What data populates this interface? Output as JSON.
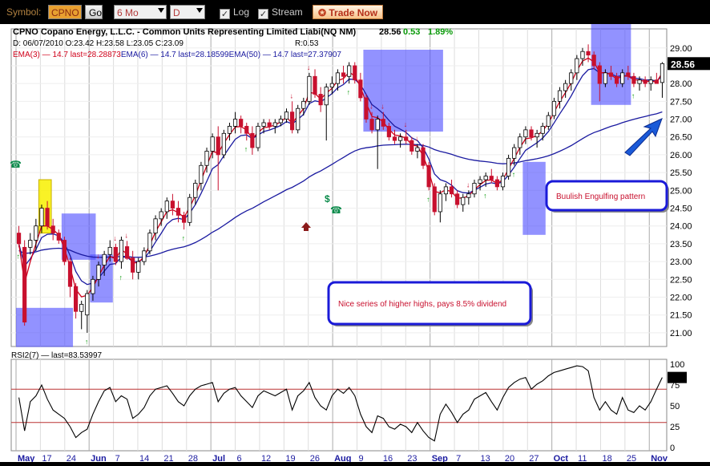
{
  "toolbar": {
    "symbol_label": "Symbol:",
    "symbol_value": "CPNO",
    "go_label": "Go",
    "period_value": "6 Mo",
    "interval_value": "D",
    "log_label": "Log",
    "stream_label": "Stream",
    "trade_label": "Trade Now"
  },
  "chart_data": [
    {
      "type": "candlestick",
      "title": "CPNO Copano Energy, L.L.C. - Common Units Representing Limited Liabi(NQ NM)",
      "last_price": "28.56",
      "change": "0.53",
      "change_pct": "1.89%",
      "ohlc_line": "D: 06/07/2010 O:23.42 H:23.58 L:23.05 C:23.09",
      "r_value": "R:0.53",
      "ema_line": [
        {
          "text": "EMA(3) — 14.7 last=28.28873",
          "color": "#d0021b"
        },
        {
          "text": "EMA(6) — 14.7 last=28.18599",
          "color": "#1a1aa0"
        },
        {
          "text": "EMA(50) — 14.7 last=27.37907",
          "color": "#1a1aa0"
        }
      ],
      "ylim": [
        20.75,
        29.4
      ],
      "yticks": [
        "29.00",
        "28.50",
        "28.00",
        "27.50",
        "27.00",
        "26.50",
        "26.00",
        "25.50",
        "25.00",
        "24.50",
        "24.00",
        "23.50",
        "23.00",
        "22.50",
        "22.00",
        "21.50",
        "21.00"
      ],
      "last_label": "28.56",
      "candles": [
        [
          23.8,
          24.0,
          23.4,
          23.5
        ],
        [
          23.4,
          23.6,
          21.2,
          21.3
        ],
        [
          23.4,
          23.8,
          23.2,
          23.6
        ],
        [
          23.6,
          24.2,
          23.3,
          24.0
        ],
        [
          24.0,
          24.6,
          23.8,
          24.5
        ],
        [
          24.5,
          24.7,
          23.9,
          24.0
        ],
        [
          24.0,
          24.2,
          23.6,
          23.8
        ],
        [
          23.8,
          23.9,
          23.5,
          23.6
        ],
        [
          23.6,
          23.7,
          22.9,
          23.0
        ],
        [
          23.0,
          23.1,
          22.0,
          22.3
        ],
        [
          22.3,
          22.4,
          21.4,
          21.6
        ],
        [
          21.6,
          21.9,
          21.1,
          21.8
        ],
        [
          21.5,
          22.2,
          21.0,
          22.1
        ],
        [
          22.1,
          22.6,
          21.9,
          22.5
        ],
        [
          22.5,
          23.0,
          22.3,
          22.9
        ],
        [
          22.9,
          23.3,
          22.6,
          23.2
        ],
        [
          23.2,
          23.6,
          23.0,
          23.4
        ],
        [
          23.4,
          23.5,
          22.9,
          23.0
        ],
        [
          23.0,
          23.7,
          22.8,
          23.6
        ],
        [
          23.42,
          23.58,
          23.05,
          23.09
        ],
        [
          23.1,
          23.3,
          22.5,
          22.7
        ],
        [
          22.7,
          23.1,
          22.5,
          23.0
        ],
        [
          23.0,
          23.4,
          22.9,
          23.3
        ],
        [
          23.3,
          23.9,
          23.2,
          23.8
        ],
        [
          23.8,
          24.3,
          23.6,
          24.2
        ],
        [
          24.2,
          24.5,
          24.0,
          24.4
        ],
        [
          24.4,
          24.8,
          24.2,
          24.7
        ],
        [
          24.7,
          24.9,
          24.3,
          24.5
        ],
        [
          24.5,
          24.7,
          24.1,
          24.3
        ],
        [
          24.3,
          24.4,
          23.9,
          24.1
        ],
        [
          24.1,
          24.9,
          24.0,
          24.8
        ],
        [
          24.8,
          25.3,
          24.6,
          25.2
        ],
        [
          25.2,
          25.8,
          25.0,
          25.7
        ],
        [
          25.7,
          26.2,
          25.5,
          26.1
        ],
        [
          26.1,
          26.6,
          25.9,
          26.5
        ],
        [
          26.5,
          26.8,
          25.0,
          26.0
        ],
        [
          26.0,
          26.7,
          25.9,
          26.6
        ],
        [
          26.6,
          26.9,
          26.4,
          26.8
        ],
        [
          26.8,
          27.2,
          26.6,
          27.0
        ],
        [
          27.0,
          27.1,
          26.6,
          26.8
        ],
        [
          26.8,
          26.9,
          26.4,
          26.6
        ],
        [
          26.6,
          26.8,
          26.0,
          26.2
        ],
        [
          26.2,
          26.9,
          26.1,
          26.8
        ],
        [
          26.8,
          27.0,
          26.6,
          26.9
        ],
        [
          26.9,
          27.0,
          26.7,
          26.8
        ],
        [
          26.8,
          27.0,
          26.6,
          26.9
        ],
        [
          26.9,
          27.1,
          26.8,
          27.0
        ],
        [
          27.0,
          27.3,
          26.9,
          27.2
        ],
        [
          27.2,
          27.5,
          26.6,
          26.7
        ],
        [
          26.7,
          27.4,
          26.6,
          27.3
        ],
        [
          27.3,
          27.6,
          27.1,
          27.5
        ],
        [
          27.5,
          28.3,
          27.4,
          28.2
        ],
        [
          28.2,
          28.4,
          27.6,
          27.7
        ],
        [
          27.7,
          27.9,
          27.2,
          27.4
        ],
        [
          27.4,
          28.0,
          26.4,
          27.9
        ],
        [
          27.9,
          28.2,
          27.7,
          28.0
        ],
        [
          28.0,
          28.4,
          27.8,
          28.3
        ],
        [
          28.3,
          28.5,
          28.0,
          28.2
        ],
        [
          28.2,
          28.6,
          28.0,
          28.5
        ],
        [
          28.5,
          28.6,
          28.0,
          28.1
        ],
        [
          28.1,
          28.3,
          27.5,
          27.6
        ],
        [
          27.6,
          27.7,
          26.9,
          27.0
        ],
        [
          27.0,
          27.2,
          26.6,
          26.7
        ],
        [
          26.7,
          27.1,
          25.6,
          27.0
        ],
        [
          27.0,
          27.2,
          26.7,
          26.8
        ],
        [
          26.8,
          26.9,
          26.4,
          26.5
        ],
        [
          26.5,
          26.7,
          26.3,
          26.4
        ],
        [
          26.4,
          26.6,
          26.2,
          26.5
        ],
        [
          26.5,
          26.7,
          26.3,
          26.4
        ],
        [
          26.4,
          26.5,
          26.0,
          26.1
        ],
        [
          26.1,
          26.3,
          25.9,
          26.2
        ],
        [
          26.2,
          26.3,
          25.6,
          25.7
        ],
        [
          25.7,
          25.8,
          25.0,
          25.1
        ],
        [
          25.1,
          25.2,
          24.3,
          24.4
        ],
        [
          24.4,
          25.0,
          24.1,
          24.9
        ],
        [
          24.9,
          25.2,
          24.7,
          25.1
        ],
        [
          25.1,
          25.3,
          24.8,
          24.9
        ],
        [
          24.9,
          25.0,
          24.5,
          24.6
        ],
        [
          24.6,
          24.9,
          24.4,
          24.8
        ],
        [
          24.8,
          25.0,
          24.6,
          24.9
        ],
        [
          24.9,
          25.3,
          24.8,
          25.2
        ],
        [
          25.2,
          25.4,
          25.0,
          25.3
        ],
        [
          25.3,
          25.5,
          25.1,
          25.4
        ],
        [
          25.4,
          25.6,
          25.2,
          25.3
        ],
        [
          25.3,
          25.4,
          25.0,
          25.1
        ],
        [
          25.1,
          25.5,
          25.0,
          25.4
        ],
        [
          25.4,
          26.0,
          25.3,
          25.9
        ],
        [
          25.9,
          26.3,
          25.7,
          26.2
        ],
        [
          26.2,
          26.6,
          26.0,
          26.5
        ],
        [
          26.5,
          26.8,
          26.3,
          26.7
        ],
        [
          26.7,
          26.8,
          26.4,
          26.5
        ],
        [
          26.5,
          26.7,
          26.2,
          26.6
        ],
        [
          26.6,
          26.9,
          26.4,
          26.8
        ],
        [
          26.8,
          27.2,
          26.7,
          27.1
        ],
        [
          27.1,
          27.6,
          27.0,
          27.5
        ],
        [
          27.5,
          27.9,
          27.3,
          27.8
        ],
        [
          27.8,
          28.1,
          27.6,
          28.0
        ],
        [
          28.0,
          28.4,
          27.8,
          28.3
        ],
        [
          28.3,
          28.8,
          28.1,
          28.7
        ],
        [
          28.7,
          29.0,
          28.5,
          28.9
        ],
        [
          28.9,
          29.1,
          28.6,
          28.8
        ],
        [
          28.8,
          28.9,
          28.4,
          28.5
        ],
        [
          28.5,
          28.6,
          27.5,
          28.0
        ],
        [
          28.0,
          28.4,
          27.9,
          28.3
        ],
        [
          28.3,
          28.5,
          28.1,
          28.2
        ],
        [
          28.2,
          28.3,
          27.9,
          28.0
        ],
        [
          28.0,
          28.4,
          27.9,
          28.3
        ],
        [
          28.3,
          28.5,
          28.1,
          28.2
        ],
        [
          28.2,
          28.3,
          27.9,
          28.0
        ],
        [
          28.0,
          28.2,
          27.8,
          28.1
        ],
        [
          28.1,
          28.2,
          27.9,
          28.0
        ],
        [
          28.0,
          28.2,
          27.8,
          28.1
        ],
        [
          28.1,
          28.3,
          28.0,
          28.0
        ],
        [
          28.03,
          28.6,
          27.6,
          28.56
        ]
      ],
      "ema_fast_color": "#d0021b",
      "ema_slow_color": "#1a1aa0",
      "annotations": [
        "Buulish Engulfing pattern",
        "Nice series of higher highs, pays 8.5% dividend"
      ]
    },
    {
      "type": "line",
      "title": "RSI2(7) — last=83.53997",
      "ylim": [
        0,
        100
      ],
      "yticks": [
        "100",
        "75",
        "50",
        "25",
        "0"
      ],
      "reference_lines": [
        70,
        30
      ],
      "values": [
        60,
        20,
        55,
        62,
        75,
        58,
        45,
        40,
        35,
        25,
        12,
        18,
        22,
        40,
        55,
        68,
        72,
        55,
        62,
        58,
        35,
        40,
        48,
        62,
        70,
        72,
        74,
        65,
        55,
        50,
        62,
        70,
        74,
        76,
        78,
        55,
        65,
        70,
        72,
        62,
        55,
        48,
        62,
        68,
        65,
        62,
        66,
        70,
        45,
        62,
        68,
        78,
        60,
        50,
        45,
        62,
        70,
        65,
        72,
        62,
        40,
        25,
        18,
        38,
        35,
        25,
        22,
        28,
        25,
        18,
        30,
        20,
        12,
        8,
        40,
        52,
        42,
        30,
        40,
        45,
        58,
        62,
        66,
        55,
        45,
        60,
        72,
        78,
        82,
        84,
        70,
        76,
        80,
        86,
        90,
        92,
        94,
        96,
        98,
        97,
        92,
        60,
        45,
        55,
        45,
        40,
        60,
        45,
        42,
        50,
        45,
        55,
        70,
        84
      ],
      "line_color": "#000000"
    }
  ],
  "x_labels": [
    "May",
    "17",
    "24",
    "Jun",
    "7",
    "14",
    "21",
    "28",
    "Jul",
    "6",
    "12",
    "19",
    "26",
    "Aug",
    "9",
    "16",
    "23",
    "Sep",
    "7",
    "13",
    "20",
    "27",
    "Oct",
    "11",
    "18",
    "25",
    "Nov"
  ]
}
